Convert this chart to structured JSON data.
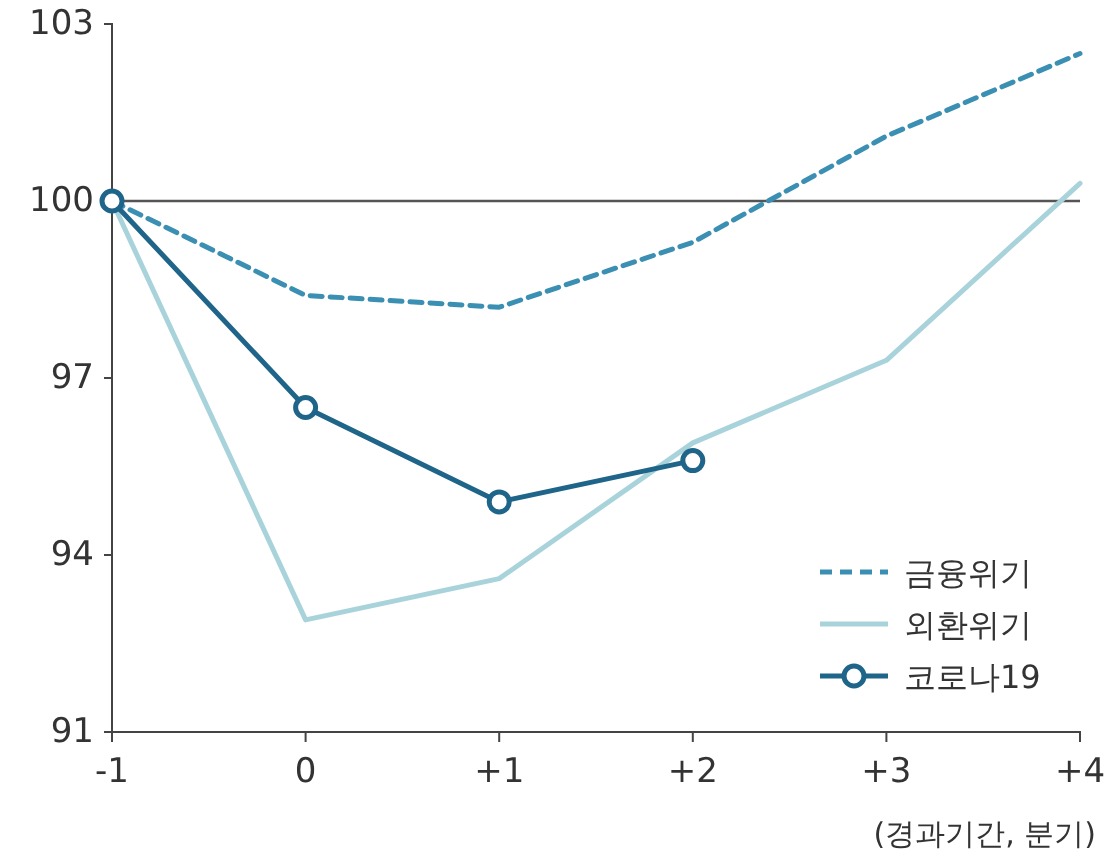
{
  "chart_data": {
    "type": "line",
    "xlabel": "(경과기간, 분기)",
    "x": [
      -1,
      0,
      1,
      2,
      3,
      4
    ],
    "series": [
      {
        "name": "금융위기",
        "color": "#3a8fb3",
        "values": [
          100,
          98.4,
          98.2,
          99.3,
          101.1,
          102.5
        ],
        "line_style": "dashed",
        "marker": "none"
      },
      {
        "name": "외환위기",
        "color": "#a9d3db",
        "values": [
          100,
          92.9,
          93.6,
          95.9,
          97.3,
          100.3
        ],
        "line_style": "solid",
        "marker": "none"
      },
      {
        "name": "코로나19",
        "color": "#1f6489",
        "values": [
          100,
          96.5,
          94.9,
          95.6,
          null,
          null
        ],
        "line_style": "solid",
        "marker": "circle"
      }
    ],
    "xlim": [
      -1,
      4
    ],
    "xticks": [
      -1,
      0,
      {
        "value": 1,
        "label": "+1"
      },
      {
        "value": 2,
        "label": "+2"
      },
      {
        "value": 3,
        "label": "+3"
      },
      {
        "value": 4,
        "label": "+4"
      }
    ],
    "ylim": [
      91,
      103
    ],
    "yticks": [
      91,
      94,
      97,
      100,
      103
    ],
    "ref_lines": [
      {
        "axis": "y",
        "value": 100,
        "color": "#555555"
      }
    ],
    "grid": false,
    "legend": "bottom right"
  }
}
